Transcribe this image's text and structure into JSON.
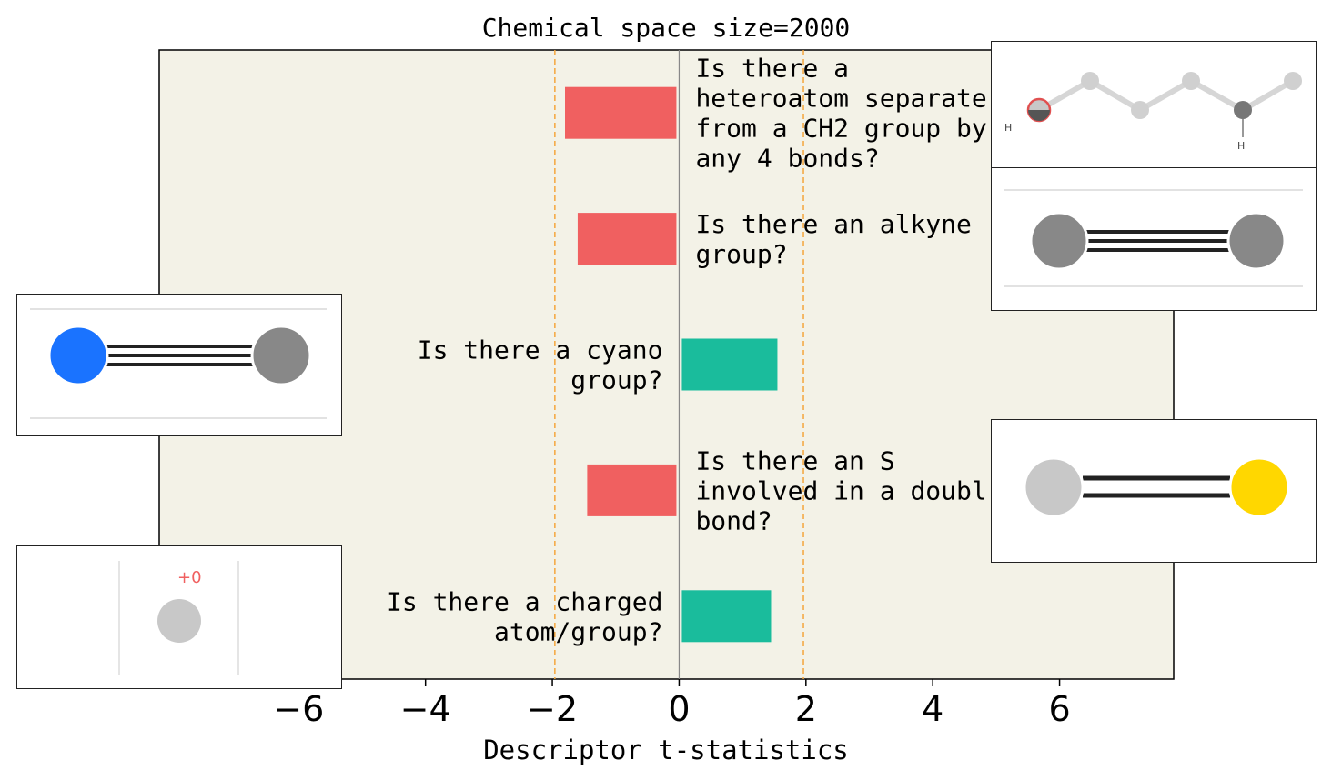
{
  "chart_data": {
    "type": "bar",
    "orientation": "horizontal",
    "title": "Chemical space size=2000",
    "xlabel": "Descriptor t-statistics",
    "ylabel": "",
    "xlim": [
      -8.2,
      7.8
    ],
    "xticks": [
      -6,
      -4,
      -2,
      0,
      2,
      4,
      6
    ],
    "xtick_labels": [
      "−6",
      "−4",
      "−2",
      "0",
      "2",
      "4",
      "6"
    ],
    "significance_lines": [
      -1.96,
      1.96
    ],
    "grid": false,
    "bars": [
      {
        "label_lines": [
          "Is there a",
          "heteroatom separate",
          "from a CH2 group by",
          "any 4 bonds?"
        ],
        "value": -1.8
      },
      {
        "label_lines": [
          "Is there an alkyne",
          "group?"
        ],
        "value": -1.6
      },
      {
        "label_lines": [
          "Is there a cyano",
          "group?"
        ],
        "value": 1.55
      },
      {
        "label_lines": [
          "Is there an S",
          "involved in a doubl",
          "bond?"
        ],
        "value": -1.45
      },
      {
        "label_lines": [
          "Is there a charged",
          "atom/group?"
        ],
        "value": 1.45
      }
    ],
    "colors": {
      "negative": "#f06060",
      "positive": "#1abc9c",
      "background": "#f3f2e7",
      "threshold": "#f5a63c",
      "zero": "#888888"
    }
  },
  "insets": {
    "heteroatom_label": "H",
    "charge_label": "+0"
  }
}
